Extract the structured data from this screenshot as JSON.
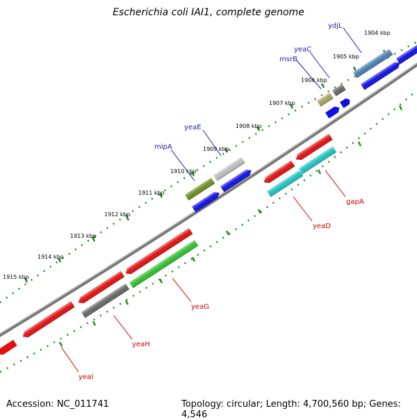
{
  "title": "Escherichia coli IAI1, complete genome",
  "footer": {
    "accession": "Accession: NC_011741",
    "summary": "Topology: circular; Length: 4,700,560 bp; Genes: 4,546"
  },
  "ticks": [
    "1904 kbp",
    "1905 kbp",
    "1906 kbp",
    "1907 kbp",
    "1908 kbp",
    "1909 kbp",
    "1910 kbp",
    "1911 kbp",
    "1912 kbp",
    "1913 kbp",
    "1914 kbp",
    "1915 kbp"
  ],
  "genes": [
    {
      "name": "ydjL",
      "strand": "top",
      "color": "#4a7fb0",
      "label_color": "#1a1aa8"
    },
    {
      "name": "yeaC",
      "strand": "top",
      "color": "#666666",
      "label_color": "#1a1aa8"
    },
    {
      "name": "msrB",
      "strand": "top",
      "color": "#a8a060",
      "label_color": "#1a1aa8"
    },
    {
      "name": "yeaE",
      "strand": "top",
      "color": "#bbbbbb",
      "label_color": "#1a1aa8"
    },
    {
      "name": "mipA",
      "strand": "top",
      "color": "#6b8e23",
      "label_color": "#1a1aa8"
    },
    {
      "name": "gapA",
      "strand": "bottom",
      "color": "#e01010",
      "label_color": "#cc0000"
    },
    {
      "name": "yeaD",
      "strand": "bottom",
      "color": "#20c0c0",
      "label_color": "#cc0000"
    },
    {
      "name": "yeaG",
      "strand": "bottom",
      "color": "#30c030",
      "label_color": "#cc0000"
    },
    {
      "name": "yeaH",
      "strand": "bottom",
      "color": "#e01010",
      "label_color": "#cc0000"
    },
    {
      "name": "yeaI",
      "strand": "bottom",
      "color": "#e01010",
      "label_color": "#cc0000"
    }
  ],
  "colors": {
    "backbone": "#777777",
    "tick": "#1f8a1f",
    "cds_blue": "#1010e0",
    "cds_red": "#e01010",
    "cds_gray": "#666666",
    "cds_green": "#30c030",
    "cds_cyan": "#20c0c0"
  }
}
